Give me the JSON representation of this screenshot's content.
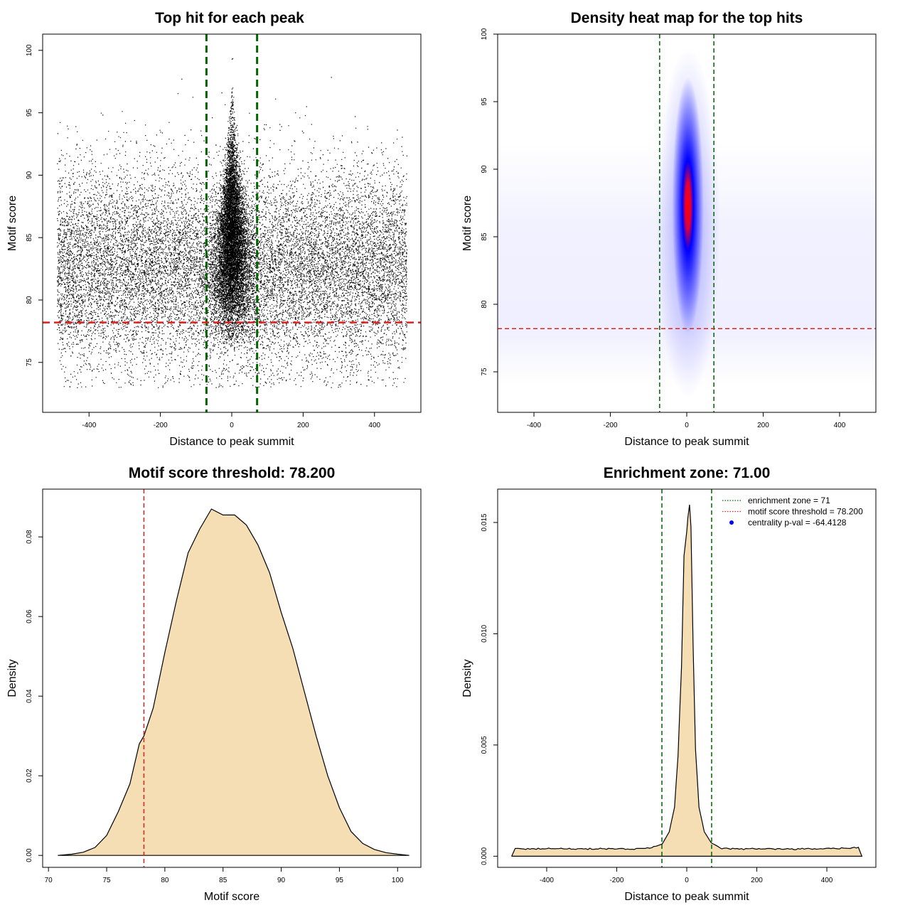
{
  "chart_data": [
    {
      "type": "scatter",
      "title": "Top hit for each peak",
      "xlabel": "Distance to peak summit",
      "ylabel": "Motif score",
      "xlim": [
        -530,
        530
      ],
      "ylim": [
        71,
        101.3
      ],
      "xticks": [
        -400,
        -200,
        0,
        200,
        400
      ],
      "yticks": [
        75,
        80,
        85,
        90,
        95,
        100
      ],
      "enrichment_zone": 71,
      "motif_score_threshold": 78.2,
      "colors": {
        "points": "#000000",
        "vlines": "#006400",
        "hline": "#e02020"
      }
    },
    {
      "type": "heatmap",
      "title": "Density heat map for the top hits",
      "xlabel": "Distance to peak summit",
      "ylabel": "Motif score",
      "xlim": [
        -495,
        495
      ],
      "ylim": [
        72,
        100
      ],
      "xticks": [
        -400,
        -200,
        0,
        200,
        400
      ],
      "yticks": [
        75,
        80,
        85,
        90,
        95,
        100
      ],
      "enrichment_zone": 71,
      "motif_score_threshold": 78.2,
      "colors": {
        "low": "#ffffff",
        "mid": "#0000ff",
        "high": "#ff0000",
        "vlines": "#006400",
        "hline": "#e02020"
      }
    },
    {
      "type": "area",
      "title": "Motif score threshold: 78.200",
      "xlabel": "Motif score",
      "ylabel": "Density",
      "xlim": [
        69.5,
        102
      ],
      "ylim": [
        -0.003,
        0.092
      ],
      "xticks": [
        70,
        75,
        80,
        85,
        90,
        95,
        100
      ],
      "yticks": [
        0.0,
        0.02,
        0.04,
        0.06,
        0.08
      ],
      "ytick_labels": [
        "0.00",
        "0.02",
        "0.04",
        "0.06",
        "0.08"
      ],
      "motif_score_threshold": 78.2,
      "x": [
        70.8,
        72,
        73,
        74,
        75,
        76,
        77,
        77.8,
        78.2,
        79,
        80,
        81,
        82,
        83,
        84,
        85,
        86,
        87,
        88,
        89,
        90,
        91,
        92,
        93,
        94,
        95,
        96,
        97,
        98,
        99,
        100,
        101
      ],
      "y": [
        0.0,
        0.0003,
        0.0008,
        0.002,
        0.005,
        0.011,
        0.018,
        0.028,
        0.03,
        0.037,
        0.051,
        0.064,
        0.076,
        0.082,
        0.087,
        0.0855,
        0.0855,
        0.083,
        0.078,
        0.071,
        0.061,
        0.052,
        0.041,
        0.03,
        0.02,
        0.012,
        0.006,
        0.003,
        0.0015,
        0.0007,
        0.0003,
        0.0
      ],
      "colors": {
        "fill": "#f5deb3",
        "line": "#000000",
        "vline": "#e02020"
      }
    },
    {
      "type": "area",
      "title": "Enrichment zone: 71.00",
      "xlabel": "Distance to peak summit",
      "ylabel": "Density",
      "xlim": [
        -540,
        540
      ],
      "ylim": [
        -0.0005,
        0.0165
      ],
      "xticks": [
        -400,
        -200,
        0,
        200,
        400
      ],
      "yticks": [
        0.0,
        0.005,
        0.01,
        0.015
      ],
      "ytick_labels": [
        "0.000",
        "0.005",
        "0.010",
        "0.015"
      ],
      "enrichment_zone": 71,
      "x": [
        -500,
        -490,
        -460,
        -400,
        -300,
        -200,
        -150,
        -100,
        -70,
        -50,
        -35,
        -25,
        -15,
        -8,
        0,
        3,
        8,
        12,
        18,
        25,
        35,
        50,
        70,
        100,
        150,
        200,
        300,
        400,
        460,
        490,
        500
      ],
      "y": [
        0.0,
        0.00035,
        0.00032,
        0.00035,
        0.00033,
        0.00034,
        0.00033,
        0.00038,
        0.00055,
        0.0011,
        0.0022,
        0.0045,
        0.0085,
        0.0135,
        0.0146,
        0.0152,
        0.0158,
        0.0148,
        0.0095,
        0.0048,
        0.0022,
        0.0011,
        0.0006,
        0.00035,
        0.00032,
        0.00034,
        0.00032,
        0.00035,
        0.00036,
        0.0004,
        0.0
      ],
      "legend": [
        {
          "label": "enrichment zone = 71",
          "kind": "dotted",
          "color": "#006400"
        },
        {
          "label": "motif score threshold = 78.200",
          "kind": "dotted",
          "color": "#e02020"
        },
        {
          "label": "centrality p-val = -64.4128",
          "kind": "point",
          "color": "#0000ff"
        }
      ],
      "legend_position": "top-right",
      "colors": {
        "fill": "#f5deb3",
        "line": "#000000",
        "vlines": "#006400"
      }
    }
  ]
}
